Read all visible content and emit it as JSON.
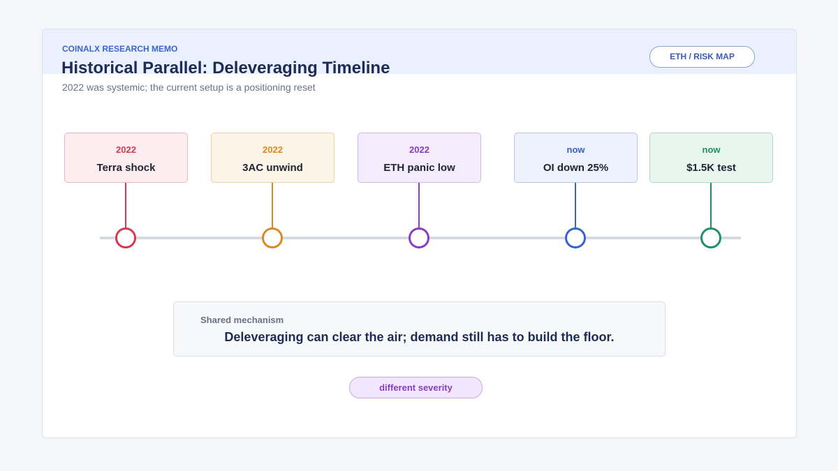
{
  "header": {
    "kicker": "COINALX RESEARCH MEMO",
    "title": "Historical Parallel: Deleveraging Timeline",
    "subtitle": "2022 was systemic; the current setup is a positioning reset",
    "badge": "ETH / RISK MAP"
  },
  "events": [
    {
      "period": "2022",
      "label": "Terra shock"
    },
    {
      "period": "2022",
      "label": "3AC unwind"
    },
    {
      "period": "2022",
      "label": "ETH panic low"
    },
    {
      "period": "now",
      "label": "OI down 25%"
    },
    {
      "period": "now",
      "label": "$1.5K test"
    }
  ],
  "callout": {
    "heading": "Shared mechanism",
    "text": "Deleveraging can clear the air; demand still has to build the floor."
  },
  "tag": "different severity"
}
